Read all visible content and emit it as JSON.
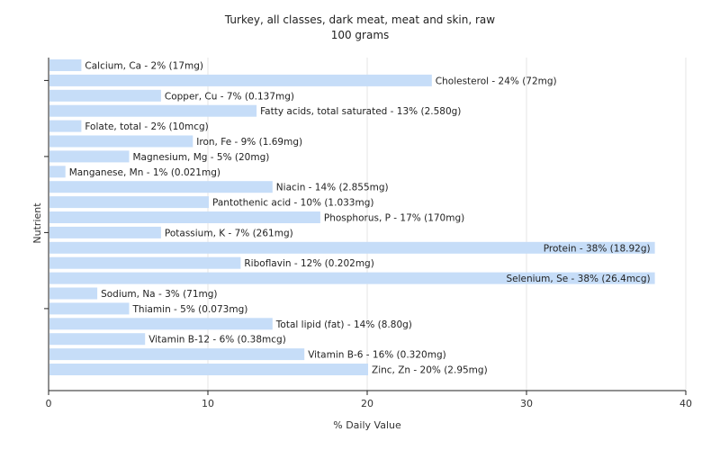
{
  "chart_data": {
    "type": "bar",
    "orientation": "horizontal",
    "title": "Turkey, all classes, dark meat, meat and skin, raw",
    "subtitle": "100 grams",
    "xlabel": "% Daily Value",
    "ylabel": "Nutrient",
    "xlim": [
      0,
      40
    ],
    "xticks": [
      "0",
      "10",
      "20",
      "30",
      "40"
    ],
    "grid": true,
    "bar_color": "#c6ddf8",
    "categories": [
      "Calcium, Ca - 2% (17mg)",
      "Cholesterol - 24% (72mg)",
      "Copper, Cu - 7% (0.137mg)",
      "Fatty acids, total saturated - 13% (2.580g)",
      "Folate, total - 2% (10mcg)",
      "Iron, Fe - 9% (1.69mg)",
      "Magnesium, Mg - 5% (20mg)",
      "Manganese, Mn - 1% (0.021mg)",
      "Niacin - 14% (2.855mg)",
      "Pantothenic acid - 10% (1.033mg)",
      "Phosphorus, P - 17% (170mg)",
      "Potassium, K - 7% (261mg)",
      "Protein - 38% (18.92g)",
      "Riboflavin - 12% (0.202mg)",
      "Selenium, Se - 38% (26.4mcg)",
      "Sodium, Na - 3% (71mg)",
      "Thiamin - 5% (0.073mg)",
      "Total lipid (fat) - 14% (8.80g)",
      "Vitamin B-12 - 6% (0.38mcg)",
      "Vitamin B-6 - 16% (0.320mg)",
      "Zinc, Zn - 20% (2.95mg)"
    ],
    "values": [
      2,
      24,
      7,
      13,
      2,
      9,
      5,
      1,
      14,
      10,
      17,
      7,
      38,
      12,
      38,
      3,
      5,
      14,
      6,
      16,
      20
    ]
  }
}
